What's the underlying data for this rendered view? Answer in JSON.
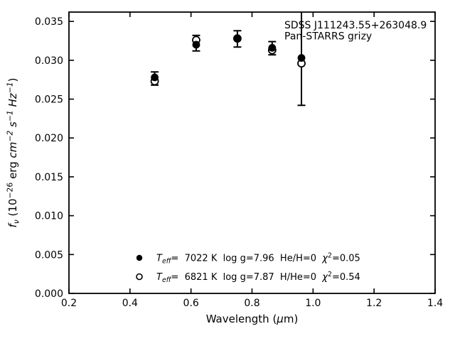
{
  "figure": {
    "background": "#ffffff",
    "ink": "#000000"
  },
  "chart_data": {
    "type": "scatter",
    "annotation": [
      "SDSS J111243.55+263048.9",
      "Pan-STARRS grizy"
    ],
    "xlabel": "Wavelength (μm)",
    "ylabel": "f_ν (10^−26 erg cm^−2 s^−1 Hz^−1)",
    "xlabel_runs": [
      {
        "t": "Wavelength ("
      },
      {
        "t": "μ",
        "i": 1
      },
      {
        "t": "m)"
      }
    ],
    "ylabel_runs": [
      {
        "t": "f",
        "i": 1
      },
      {
        "t": "ν",
        "i": 1,
        "sub": 1
      },
      {
        "t": " (10"
      },
      {
        "t": "−26",
        "sup": 1
      },
      {
        "t": " erg "
      },
      {
        "t": "cm",
        "i": 1
      },
      {
        "t": "−2",
        "i": 1,
        "sup": 1
      },
      {
        "t": " "
      },
      {
        "t": "s",
        "i": 1
      },
      {
        "t": "−1",
        "i": 1,
        "sup": 1
      },
      {
        "t": " "
      },
      {
        "t": "Hz",
        "i": 1
      },
      {
        "t": "−1",
        "i": 1,
        "sup": 1
      },
      {
        "t": ")"
      }
    ],
    "xlim": [
      0.2,
      1.4
    ],
    "ylim": [
      0.0,
      0.0362
    ],
    "grid": false,
    "tick_direction": "in",
    "ticks_all_sides": true,
    "xticks": {
      "values": [
        0.2,
        0.4,
        0.6,
        0.8,
        1.0,
        1.2,
        1.4
      ],
      "labels": [
        "0.2",
        "0.4",
        "0.6",
        "0.8",
        "1.0",
        "1.2",
        "1.4"
      ]
    },
    "yticks": {
      "values": [
        0.0,
        0.005,
        0.01,
        0.015,
        0.02,
        0.025,
        0.03,
        0.035
      ],
      "labels": [
        "0.000",
        "0.005",
        "0.010",
        "0.015",
        "0.020",
        "0.025",
        "0.030",
        "0.035"
      ]
    },
    "bands": [
      "g",
      "r",
      "i",
      "z",
      "y"
    ],
    "x": [
      0.481,
      0.617,
      0.752,
      0.866,
      0.962
    ],
    "series": [
      {
        "name": "model Teff=7022 K",
        "marker": "filled-circle",
        "values": [
          0.0278,
          0.032,
          0.0328,
          0.0316,
          0.0303
        ]
      },
      {
        "name": "model Teff=6821 K",
        "marker": "open-circle",
        "values": [
          0.0273,
          0.0326,
          0.0328,
          0.0313,
          0.0296
        ]
      }
    ],
    "errorbars": [
      {
        "band": "g",
        "x": 0.481,
        "low": 0.0268,
        "high": 0.0285,
        "clip_high": false
      },
      {
        "band": "r",
        "x": 0.617,
        "low": 0.0312,
        "high": 0.0332,
        "clip_high": false
      },
      {
        "band": "i",
        "x": 0.752,
        "low": 0.0317,
        "high": 0.0338,
        "clip_high": false
      },
      {
        "band": "z",
        "x": 0.866,
        "low": 0.0307,
        "high": 0.0324,
        "clip_high": false
      },
      {
        "band": "y",
        "x": 0.962,
        "low": 0.0242,
        "high": 0.0362,
        "clip_high": true
      }
    ],
    "legend_position": "lower center"
  },
  "legend": {
    "entries": [
      {
        "marker": "filled-circle",
        "text": "Teff=  7022 K  log g=7.96  He/H=0  χ2=0.05",
        "runs": [
          {
            "t": "T",
            "i": 1
          },
          {
            "t": "eff",
            "i": 1,
            "sub": 1
          },
          {
            "t": "=  7022 K  log g=7.96  He/H=0  "
          },
          {
            "t": "χ",
            "i": 1
          },
          {
            "t": "2",
            "sup": 1
          },
          {
            "t": "=0.05"
          }
        ]
      },
      {
        "marker": "open-circle",
        "text": "Teff=  6821 K  log g=7.87  H/He=0  χ2=0.54",
        "runs": [
          {
            "t": "T",
            "i": 1
          },
          {
            "t": "eff",
            "i": 1,
            "sub": 1
          },
          {
            "t": "=  6821 K  log g=7.87  H/He=0  "
          },
          {
            "t": "χ",
            "i": 1
          },
          {
            "t": "2",
            "sup": 1
          },
          {
            "t": "=0.54"
          }
        ]
      }
    ]
  }
}
